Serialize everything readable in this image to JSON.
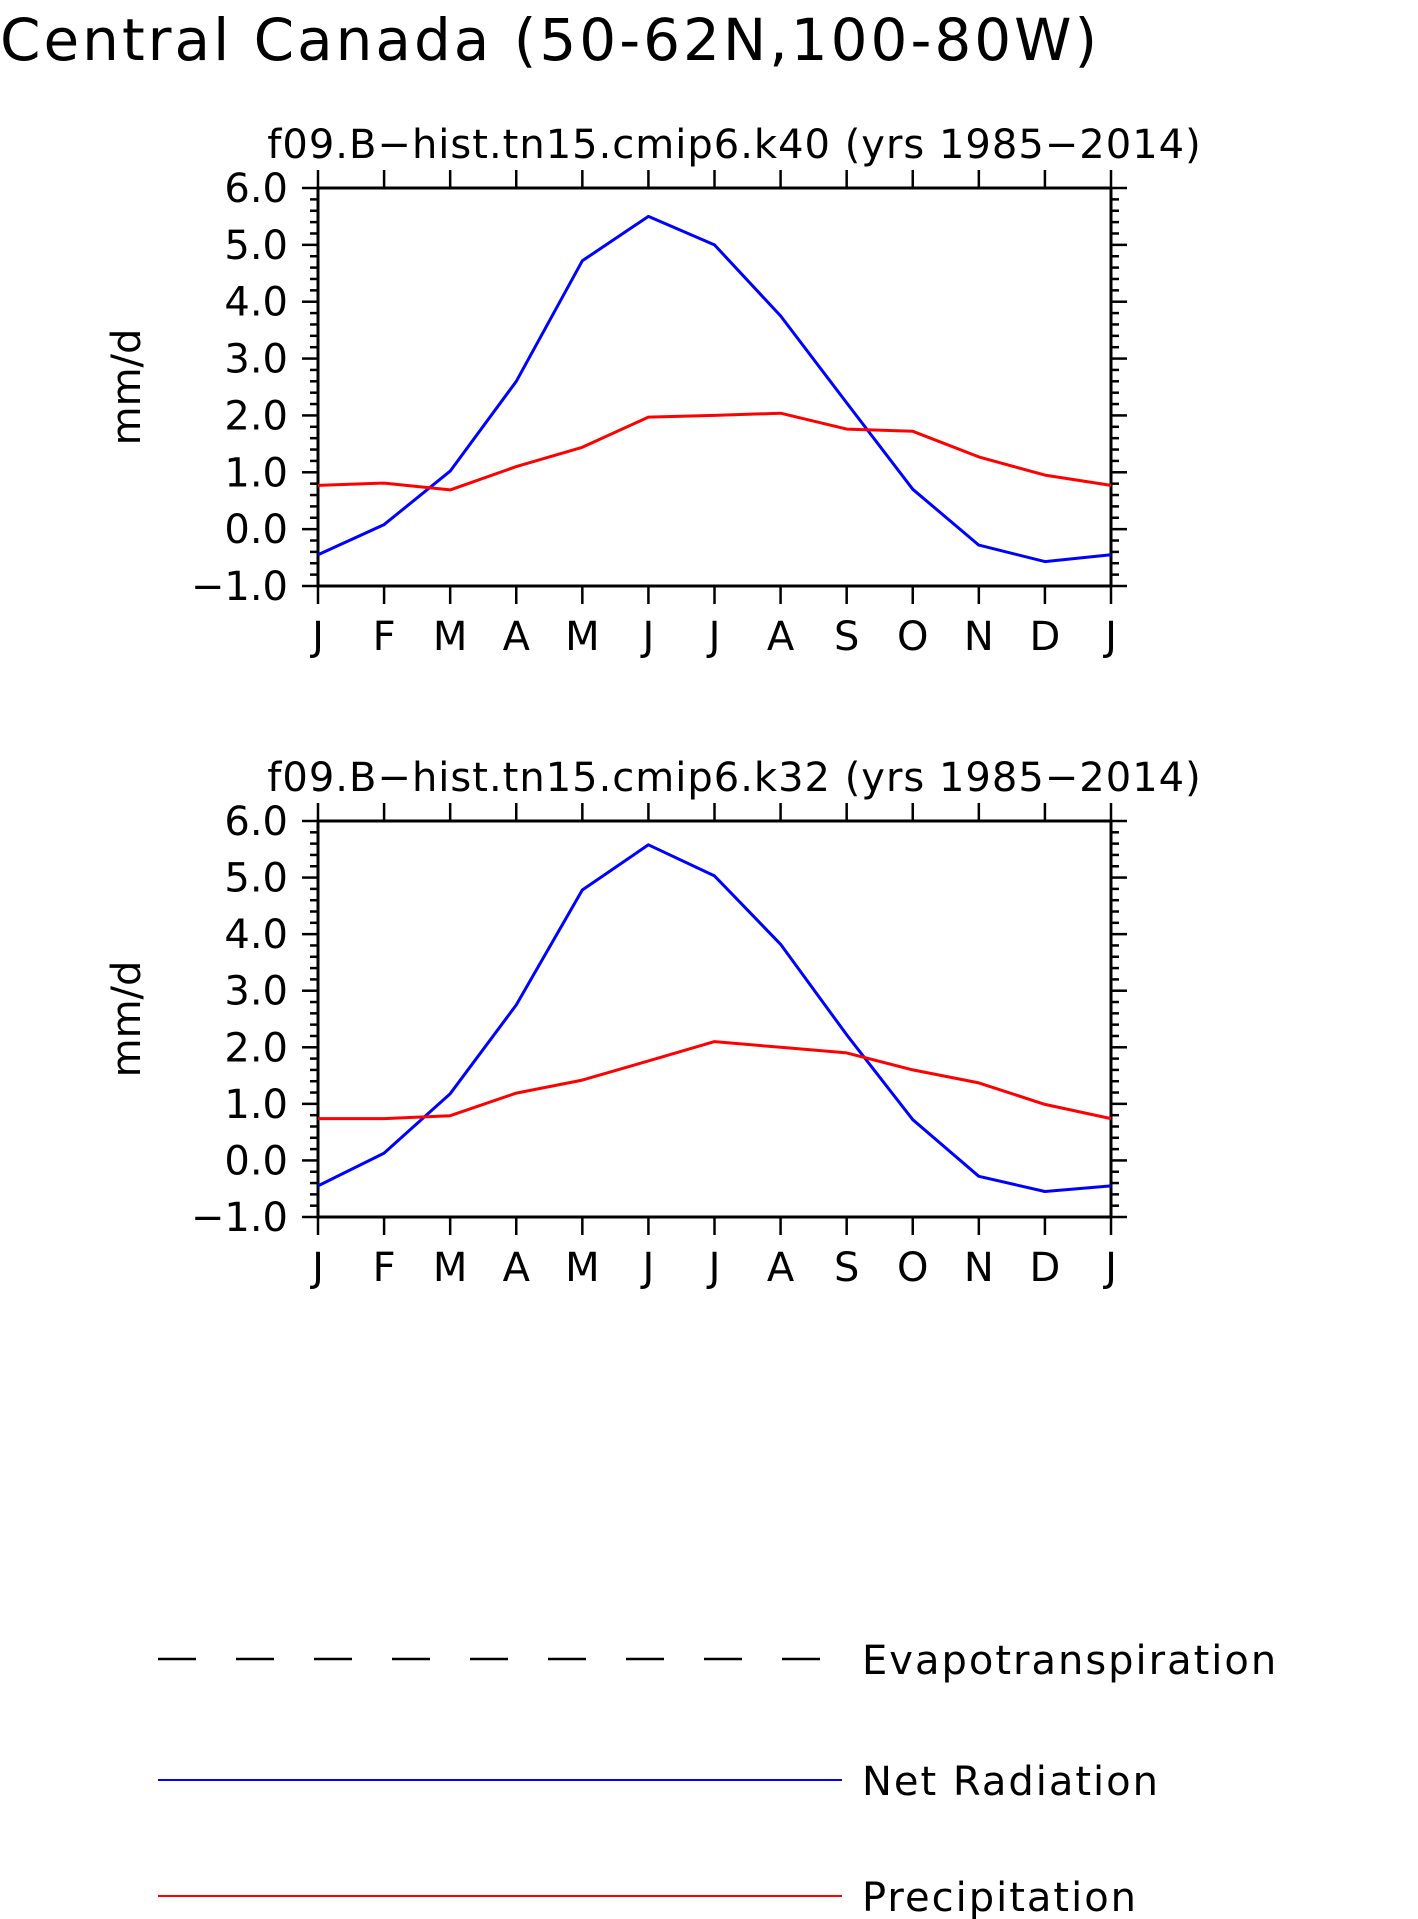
{
  "page_title": "Central Canada (50-62N,100-80W)",
  "colors": {
    "net_radiation": "#0000ff",
    "precipitation": "#ff0000",
    "evapotranspiration": "#000000"
  },
  "chart_data": [
    {
      "type": "line",
      "title": "f09.B-hist.tn15.cmip6.k40 (yrs 1985-2014)",
      "xlabel": "",
      "ylabel": "mm/d",
      "categories": [
        "J",
        "F",
        "M",
        "A",
        "M",
        "J",
        "J",
        "A",
        "S",
        "O",
        "N",
        "D",
        "J"
      ],
      "ylim": [
        -1.0,
        6.0
      ],
      "yticks": [
        "6.0",
        "5.0",
        "4.0",
        "3.0",
        "2.0",
        "1.0",
        "0.0",
        "-1.0"
      ],
      "series": [
        {
          "name": "Net Radiation",
          "color": "#0000ff",
          "values": [
            -0.45,
            0.08,
            1.02,
            2.6,
            4.72,
            5.5,
            5.0,
            3.75,
            2.22,
            0.7,
            -0.28,
            -0.57,
            -0.45
          ]
        },
        {
          "name": "Precipitation",
          "color": "#ff0000",
          "values": [
            0.77,
            0.81,
            0.69,
            1.1,
            1.44,
            1.97,
            2.0,
            2.04,
            1.76,
            1.72,
            1.27,
            0.95,
            0.77
          ]
        }
      ]
    },
    {
      "type": "line",
      "title": "f09.B-hist.tn15.cmip6.k32 (yrs 1985-2014)",
      "xlabel": "",
      "ylabel": "mm/d",
      "categories": [
        "J",
        "F",
        "M",
        "A",
        "M",
        "J",
        "J",
        "A",
        "S",
        "O",
        "N",
        "D",
        "J"
      ],
      "ylim": [
        -1.0,
        6.0
      ],
      "yticks": [
        "6.0",
        "5.0",
        "4.0",
        "3.0",
        "2.0",
        "1.0",
        "0.0",
        "-1.0"
      ],
      "series": [
        {
          "name": "Net Radiation",
          "color": "#0000ff",
          "values": [
            -0.45,
            0.13,
            1.18,
            2.75,
            4.78,
            5.58,
            5.03,
            3.82,
            2.22,
            0.72,
            -0.28,
            -0.55,
            -0.45
          ]
        },
        {
          "name": "Precipitation",
          "color": "#ff0000",
          "values": [
            0.74,
            0.74,
            0.79,
            1.19,
            1.42,
            1.76,
            2.1,
            2.0,
            1.9,
            1.6,
            1.37,
            0.99,
            0.74
          ]
        }
      ]
    }
  ],
  "legend": {
    "placement": "bottom",
    "items": [
      {
        "label": "Evapotranspiration",
        "style": "dashed",
        "color": "#000000"
      },
      {
        "label": "Net Radiation",
        "style": "solid",
        "color": "#0000ff"
      },
      {
        "label": "Precipitation",
        "style": "solid",
        "color": "#ff0000"
      }
    ]
  }
}
